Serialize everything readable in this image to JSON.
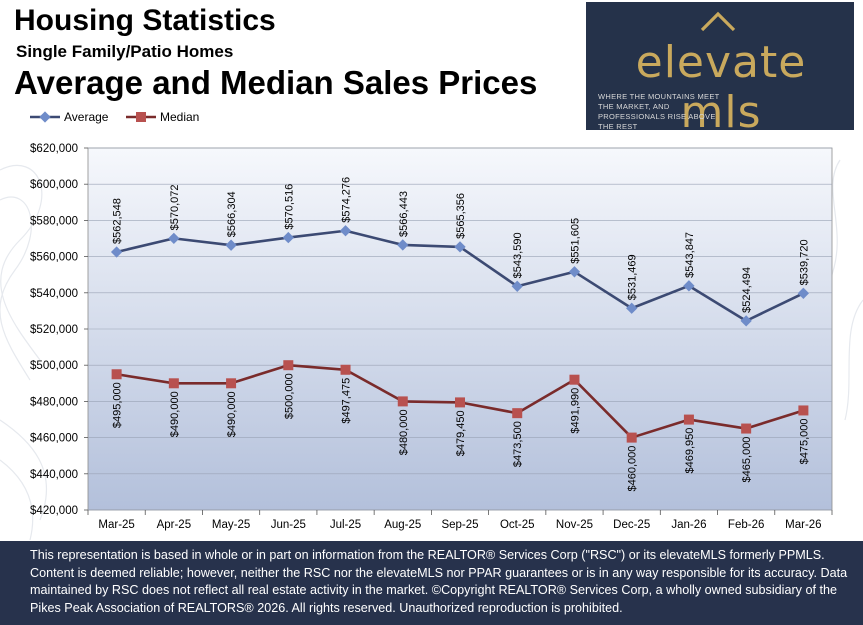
{
  "header": {
    "title": "Housing Statistics",
    "subtitle": "Single Family/Patio Homes",
    "heading": "Average and Median Sales Prices"
  },
  "logo": {
    "wordmark": "elevate mls",
    "tagline": "WHERE THE MOUNTAINS MEET THE MARKET, AND PROFESSIONALS RISE ABOVE THE REST"
  },
  "colors": {
    "average": "#3c4a73",
    "average_marker": "#6f8cc9",
    "median": "#7a2b2b",
    "median_marker": "#b8514f",
    "plot_top": "#f6f8fc",
    "plot_bottom": "#b3c0db",
    "footer_bg": "#27324c"
  },
  "chart_data": {
    "type": "line",
    "title": "Average and Median Sales Prices",
    "xlabel": "",
    "ylabel": "",
    "categories": [
      "Mar-25",
      "Apr-25",
      "May-25",
      "Jun-25",
      "Jul-25",
      "Aug-25",
      "Sep-25",
      "Oct-25",
      "Nov-25",
      "Dec-25",
      "Jan-26",
      "Feb-26",
      "Mar-26"
    ],
    "ylim": [
      420000,
      620000
    ],
    "yticks": [
      420000,
      440000,
      460000,
      480000,
      500000,
      520000,
      540000,
      560000,
      580000,
      600000,
      620000
    ],
    "ytick_labels": [
      "$420,000",
      "$440,000",
      "$460,000",
      "$480,000",
      "$500,000",
      "$520,000",
      "$540,000",
      "$560,000",
      "$580,000",
      "$600,000",
      "$620,000"
    ],
    "legend_position": "top-left",
    "series": [
      {
        "name": "Average",
        "values": [
          562548,
          570072,
          566304,
          570516,
          574276,
          566443,
          565356,
          543590,
          551605,
          531469,
          543847,
          524494,
          539720
        ],
        "labels": [
          "$562,548",
          "$570,072",
          "$566,304",
          "$570,516",
          "$574,276",
          "$566,443",
          "$565,356",
          "$543,590",
          "$551,605",
          "$531,469",
          "$543,847",
          "$524,494",
          "$539,720"
        ]
      },
      {
        "name": "Median",
        "values": [
          495000,
          490000,
          490000,
          500000,
          497475,
          480000,
          479450,
          473500,
          491990,
          460000,
          469950,
          465000,
          475000
        ],
        "labels": [
          "$495,000",
          "$490,000",
          "$490,000",
          "$500,000",
          "$497,475",
          "$480,000",
          "$479,450",
          "$473,500",
          "$491,990",
          "$460,000",
          "$469,950",
          "$465,000",
          "$475,000"
        ]
      }
    ]
  },
  "footer": {
    "disclaimer": "This representation is based in whole or in part on information from the REALTOR® Services Corp (\"RSC\") or its elevateMLS formerly PPMLS. Content is deemed reliable; however, neither the RSC nor the elevateMLS nor PPAR guarantees or is in any way responsible for its accuracy. Data maintained by RSC does not reflect all real estate activity in the market.  ©Copyright REALTOR® Services Corp, a wholly owned subsidiary of the Pikes Peak Association of REALTORS®  2026. All rights reserved.  Unauthorized reproduction is prohibited."
  }
}
